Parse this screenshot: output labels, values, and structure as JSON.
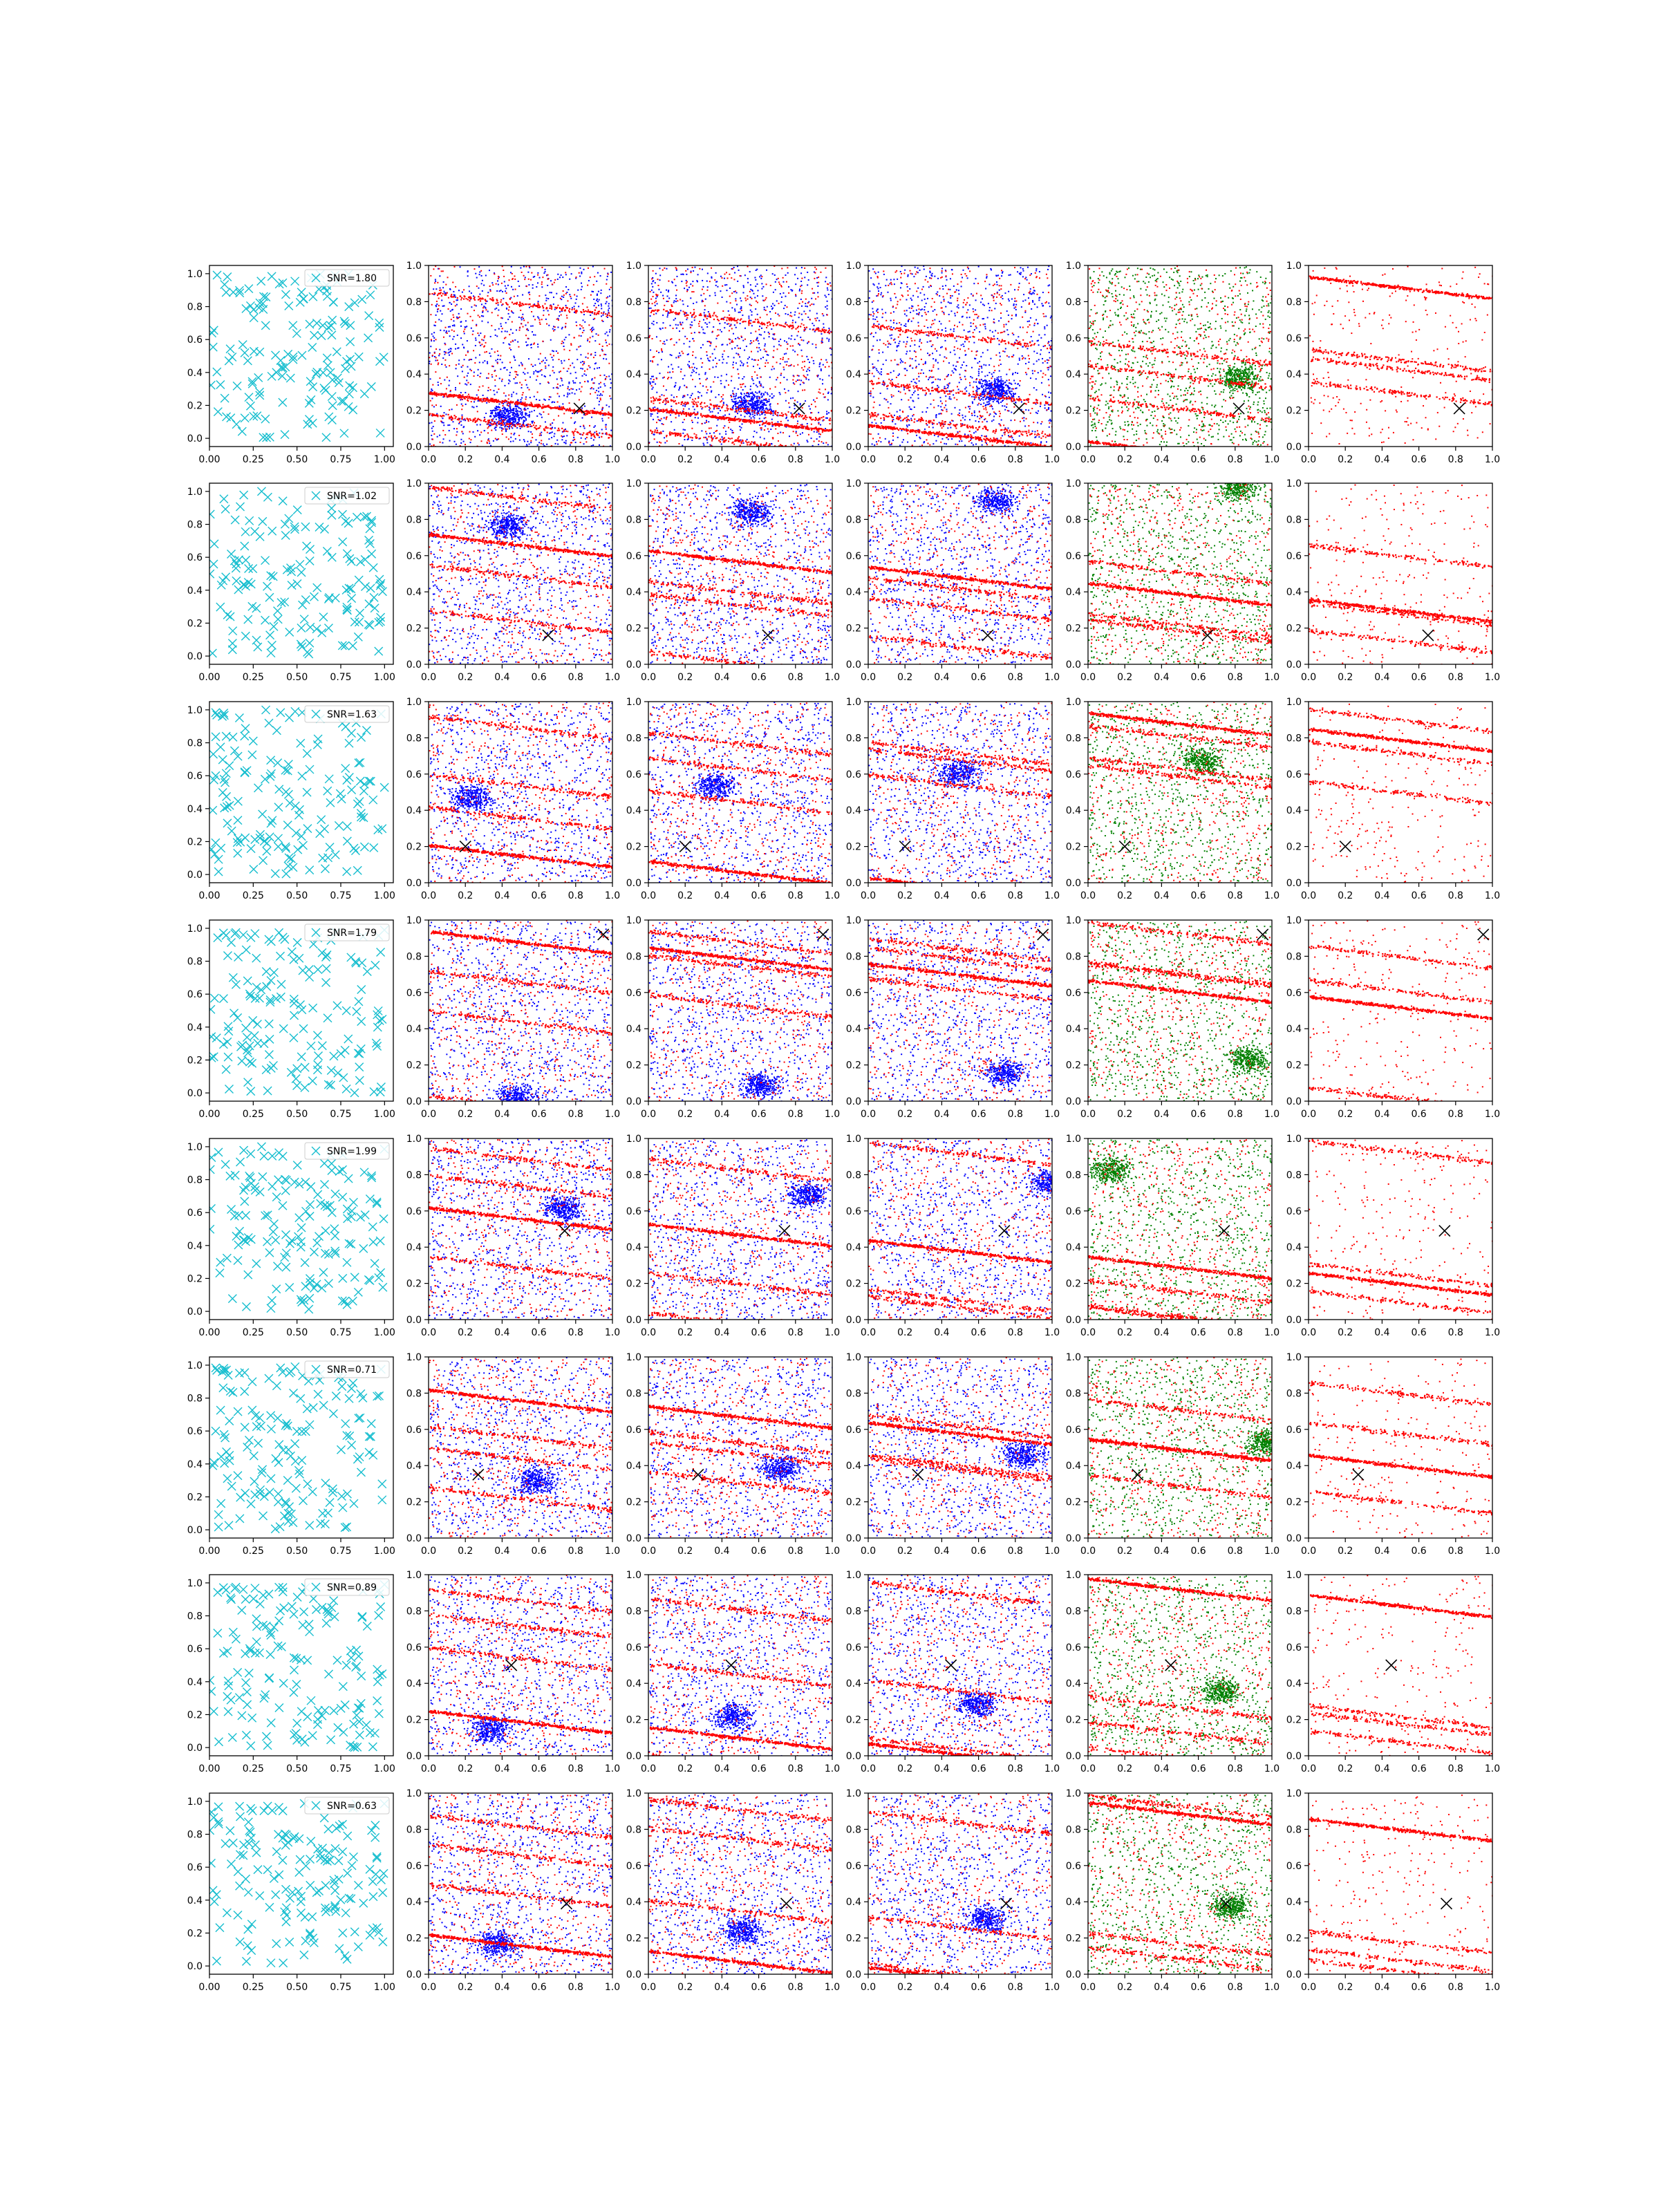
{
  "chart_data": {
    "type": "scatter",
    "layout": {
      "rows": 8,
      "cols": 6
    },
    "colors": {
      "first_column": "#17becf",
      "blue": "#0000ff",
      "red": "#ff0000",
      "green": "#008000",
      "marker": "#000000"
    },
    "first_column": {
      "xlim": [
        0.0,
        1.05
      ],
      "ylim": [
        -0.05,
        1.05
      ],
      "xticks": [
        "0.00",
        "0.25",
        "0.50",
        "0.75",
        "1.00"
      ],
      "yticks": [
        "0.0",
        "0.2",
        "0.4",
        "0.6",
        "0.8",
        "1.0"
      ],
      "legend_placement": "top-right"
    },
    "other_columns": {
      "xlim": [
        0.0,
        1.0
      ],
      "ylim": [
        0.0,
        1.0
      ],
      "xticks": [
        "0.0",
        "0.2",
        "0.4",
        "0.6",
        "0.8",
        "1.0"
      ],
      "yticks": [
        "0.0",
        "0.2",
        "0.4",
        "0.6",
        "0.8",
        "1.0"
      ]
    },
    "column_colors": [
      [
        "cyan"
      ],
      [
        "blue",
        "red"
      ],
      [
        "blue",
        "red"
      ],
      [
        "blue",
        "red"
      ],
      [
        "green",
        "red"
      ],
      [
        "red"
      ]
    ],
    "rows": [
      {
        "legend": "SNR=1.80",
        "marker": [
          0.82,
          0.21
        ],
        "stripe_intercepts": [
          0.3,
          1.0,
          0.85,
          0.18
        ],
        "blob": [
          0.3,
          0.1
        ]
      },
      {
        "legend": "SNR=1.02",
        "marker": [
          0.65,
          0.16
        ],
        "stripe_intercepts": [
          0.72,
          0.98,
          0.55,
          0.3
        ],
        "blob": [
          0.3,
          0.7
        ]
      },
      {
        "legend": "SNR=1.63",
        "marker": [
          0.2,
          0.2
        ],
        "stripe_intercepts": [
          0.21,
          0.6,
          0.92,
          0.42
        ],
        "blob": [
          0.1,
          0.4
        ]
      },
      {
        "legend": "SNR=1.79",
        "marker": [
          0.95,
          0.92
        ],
        "stripe_intercepts": [
          0.94,
          0.5,
          0.03,
          0.72
        ],
        "blob": [
          0.35,
          0.95
        ]
      },
      {
        "legend": "SNR=1.99",
        "marker": [
          0.74,
          0.49
        ],
        "stripe_intercepts": [
          0.62,
          0.95,
          0.35,
          0.8
        ],
        "blob": [
          0.6,
          0.55
        ]
      },
      {
        "legend": "SNR=0.71",
        "marker": [
          0.27,
          0.35
        ],
        "stripe_intercepts": [
          0.82,
          0.5,
          0.62,
          0.28
        ],
        "blob": [
          0.45,
          0.25
        ]
      },
      {
        "legend": "SNR=0.89",
        "marker": [
          0.45,
          0.5
        ],
        "stripe_intercepts": [
          0.25,
          0.78,
          0.6,
          0.92
        ],
        "blob": [
          0.2,
          0.08
        ]
      },
      {
        "legend": "SNR=0.63",
        "marker": [
          0.75,
          0.39
        ],
        "stripe_intercepts": [
          0.22,
          0.72,
          0.5,
          0.88
        ],
        "blob": [
          0.25,
          0.1
        ]
      }
    ]
  }
}
